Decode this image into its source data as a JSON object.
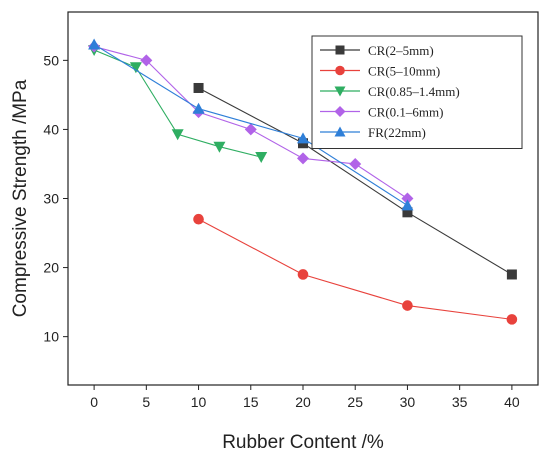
{
  "chart_data": {
    "type": "line",
    "xlabel": "Rubber Content /%",
    "ylabel": "Compressive Strength /MPa",
    "xlim": [
      -2.5,
      42.5
    ],
    "ylim": [
      3,
      57
    ],
    "x_ticks": [
      0,
      5,
      10,
      15,
      20,
      25,
      30,
      35,
      40
    ],
    "y_ticks": [
      10,
      20,
      30,
      40,
      50
    ],
    "grid": false,
    "legend_position": "top-right",
    "series": [
      {
        "name": "CR(2–5mm)",
        "color": "#3a3a3a",
        "marker": "square",
        "x": [
          10,
          20,
          30,
          40
        ],
        "y": [
          46,
          38,
          28,
          19
        ]
      },
      {
        "name": "CR(5–10mm)",
        "color": "#e8423c",
        "marker": "circle",
        "x": [
          10,
          20,
          30,
          40
        ],
        "y": [
          27,
          19,
          14.5,
          12.5
        ]
      },
      {
        "name": "CR(0.85–1.4mm)",
        "color": "#2fae62",
        "marker": "triangle-down",
        "x": [
          0,
          4,
          8,
          12,
          16
        ],
        "y": [
          51.5,
          49,
          39.3,
          37.5,
          36
        ]
      },
      {
        "name": "CR(0.1–6mm)",
        "color": "#b163e8",
        "marker": "diamond",
        "x": [
          0,
          5,
          10,
          15,
          20,
          25,
          30
        ],
        "y": [
          52,
          50,
          42.5,
          40,
          35.8,
          35,
          30
        ]
      },
      {
        "name": "FR(22mm)",
        "color": "#2f7fd8",
        "marker": "triangle-up",
        "x": [
          0,
          10,
          20,
          30
        ],
        "y": [
          52.3,
          43,
          38.7,
          29
        ]
      }
    ]
  }
}
